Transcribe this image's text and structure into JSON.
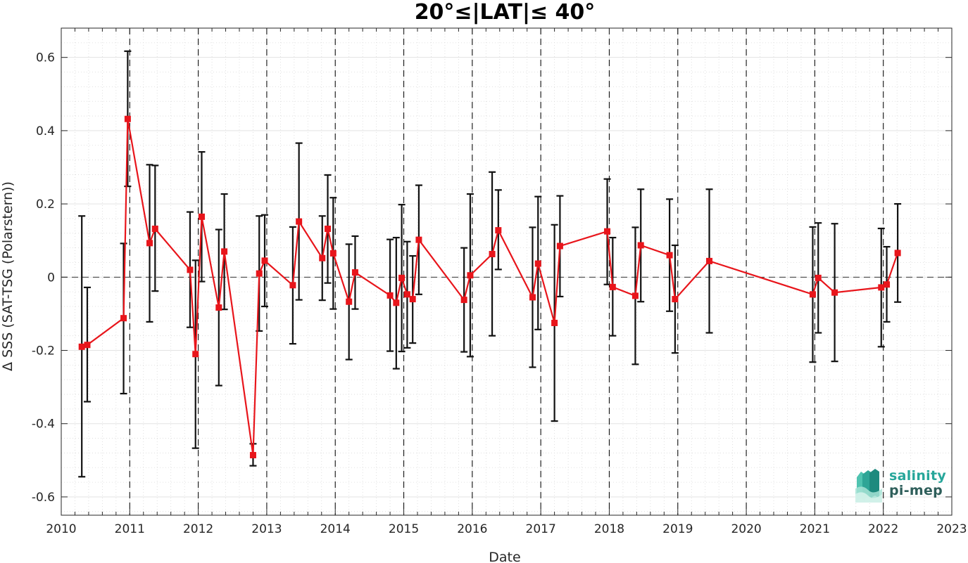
{
  "chart_data": {
    "type": "line",
    "title": "20°≤|LAT|≤ 40°",
    "xlabel": "Date",
    "ylabel": "Δ SSS (SAT-TSG (Polarstern))",
    "xlim": [
      2010,
      2023
    ],
    "ylim": [
      -0.65,
      0.68
    ],
    "xticks": [
      2010,
      2011,
      2012,
      2013,
      2014,
      2015,
      2016,
      2017,
      2018,
      2019,
      2020,
      2021,
      2022,
      2023
    ],
    "xtick_labels": [
      "2010",
      "2011",
      "2012",
      "2013",
      "2014",
      "2015",
      "2016",
      "2017",
      "2018",
      "2019",
      "2020",
      "2021",
      "2022",
      "2023"
    ],
    "yticks": [
      -0.6,
      -0.4,
      -0.2,
      0,
      0.2,
      0.4,
      0.6
    ],
    "ytick_labels": [
      "-0.6",
      "-0.4",
      "-0.2",
      "0",
      "0.2",
      "0.4",
      "0.6"
    ],
    "grid": true,
    "year_lines": [
      2011,
      2012,
      2013,
      2014,
      2015,
      2016,
      2017,
      2018,
      2019,
      2020,
      2021,
      2022
    ],
    "series": [
      {
        "color": "#e8151b",
        "marker": "square",
        "points": [
          {
            "x": 2010.3,
            "y": -0.19,
            "err_low": -0.545,
            "err_high": 0.167
          },
          {
            "x": 2010.38,
            "y": -0.185,
            "err_low": -0.34,
            "err_high": -0.028
          },
          {
            "x": 2010.91,
            "y": -0.112,
            "err_low": -0.318,
            "err_high": 0.092
          },
          {
            "x": 2010.97,
            "y": 0.432,
            "err_low": 0.248,
            "err_high": 0.617
          },
          {
            "x": 2011.29,
            "y": 0.093,
            "err_low": -0.122,
            "err_high": 0.307
          },
          {
            "x": 2011.37,
            "y": 0.132,
            "err_low": -0.038,
            "err_high": 0.305
          },
          {
            "x": 2011.88,
            "y": 0.02,
            "err_low": -0.137,
            "err_high": 0.178
          },
          {
            "x": 2011.96,
            "y": -0.21,
            "err_low": -0.467,
            "err_high": 0.046
          },
          {
            "x": 2012.05,
            "y": 0.165,
            "err_low": -0.012,
            "err_high": 0.342
          },
          {
            "x": 2012.3,
            "y": -0.083,
            "err_low": -0.296,
            "err_high": 0.13
          },
          {
            "x": 2012.38,
            "y": 0.07,
            "err_low": -0.088,
            "err_high": 0.227
          },
          {
            "x": 2012.8,
            "y": -0.486,
            "err_low": -0.515,
            "err_high": -0.455
          },
          {
            "x": 2012.89,
            "y": 0.01,
            "err_low": -0.147,
            "err_high": 0.167
          },
          {
            "x": 2012.97,
            "y": 0.045,
            "err_low": -0.08,
            "err_high": 0.17
          },
          {
            "x": 2013.38,
            "y": -0.022,
            "err_low": -0.182,
            "err_high": 0.137
          },
          {
            "x": 2013.47,
            "y": 0.152,
            "err_low": -0.062,
            "err_high": 0.366
          },
          {
            "x": 2013.81,
            "y": 0.052,
            "err_low": -0.063,
            "err_high": 0.167
          },
          {
            "x": 2013.89,
            "y": 0.132,
            "err_low": -0.016,
            "err_high": 0.279
          },
          {
            "x": 2013.97,
            "y": 0.065,
            "err_low": -0.087,
            "err_high": 0.217
          },
          {
            "x": 2014.2,
            "y": -0.067,
            "err_low": -0.225,
            "err_high": 0.09
          },
          {
            "x": 2014.29,
            "y": 0.013,
            "err_low": -0.087,
            "err_high": 0.112
          },
          {
            "x": 2014.8,
            "y": -0.05,
            "err_low": -0.202,
            "err_high": 0.103
          },
          {
            "x": 2014.89,
            "y": -0.07,
            "err_low": -0.25,
            "err_high": 0.108
          },
          {
            "x": 2014.97,
            "y": -0.002,
            "err_low": -0.203,
            "err_high": 0.198
          },
          {
            "x": 2015.05,
            "y": -0.047,
            "err_low": -0.193,
            "err_high": 0.097
          },
          {
            "x": 2015.13,
            "y": -0.06,
            "err_low": -0.18,
            "err_high": 0.058
          },
          {
            "x": 2015.22,
            "y": 0.102,
            "err_low": -0.047,
            "err_high": 0.251
          },
          {
            "x": 2015.88,
            "y": -0.062,
            "err_low": -0.204,
            "err_high": 0.08
          },
          {
            "x": 2015.97,
            "y": 0.005,
            "err_low": -0.217,
            "err_high": 0.227
          },
          {
            "x": 2016.29,
            "y": 0.063,
            "err_low": -0.16,
            "err_high": 0.287
          },
          {
            "x": 2016.38,
            "y": 0.128,
            "err_low": 0.021,
            "err_high": 0.238
          },
          {
            "x": 2016.88,
            "y": -0.055,
            "err_low": -0.246,
            "err_high": 0.136
          },
          {
            "x": 2016.96,
            "y": 0.037,
            "err_low": -0.143,
            "err_high": 0.22
          },
          {
            "x": 2017.2,
            "y": -0.125,
            "err_low": -0.393,
            "err_high": 0.143
          },
          {
            "x": 2017.28,
            "y": 0.085,
            "err_low": -0.053,
            "err_high": 0.222
          },
          {
            "x": 2017.97,
            "y": 0.125,
            "err_low": -0.02,
            "err_high": 0.268
          },
          {
            "x": 2018.05,
            "y": -0.027,
            "err_low": -0.16,
            "err_high": 0.108
          },
          {
            "x": 2018.38,
            "y": -0.051,
            "err_low": -0.238,
            "err_high": 0.136
          },
          {
            "x": 2018.46,
            "y": 0.087,
            "err_low": -0.067,
            "err_high": 0.24
          },
          {
            "x": 2018.88,
            "y": 0.06,
            "err_low": -0.093,
            "err_high": 0.213
          },
          {
            "x": 2018.96,
            "y": -0.06,
            "err_low": -0.207,
            "err_high": 0.087
          },
          {
            "x": 2019.46,
            "y": 0.044,
            "err_low": -0.152,
            "err_high": 0.24
          },
          {
            "x": 2020.97,
            "y": -0.047,
            "err_low": -0.232,
            "err_high": 0.137
          },
          {
            "x": 2021.05,
            "y": -0.002,
            "err_low": -0.152,
            "err_high": 0.148
          },
          {
            "x": 2021.29,
            "y": -0.042,
            "err_low": -0.23,
            "err_high": 0.146
          },
          {
            "x": 2021.97,
            "y": -0.028,
            "err_low": -0.19,
            "err_high": 0.133
          },
          {
            "x": 2022.05,
            "y": -0.02,
            "err_low": -0.122,
            "err_high": 0.083
          },
          {
            "x": 2022.21,
            "y": 0.066,
            "err_low": -0.068,
            "err_high": 0.2
          }
        ]
      }
    ]
  },
  "logo": {
    "line1": "salinity",
    "line2": "pi-mep"
  }
}
